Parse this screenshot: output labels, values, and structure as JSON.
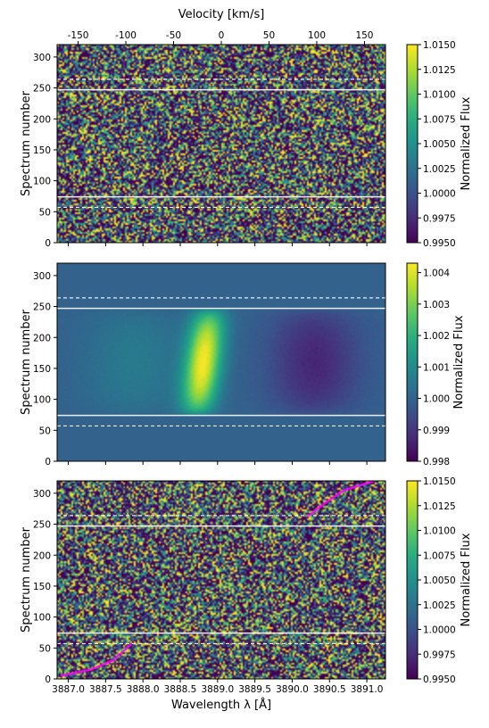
{
  "chart_data": [
    {
      "type": "heatmap",
      "xlabel_top": "Velocity [km/s]",
      "ylabel": "Spectrum number",
      "colorbar_label": "Normalized Flux",
      "colormap": "viridis",
      "velocity_range": [
        -172,
        172
      ],
      "velocity_ticks": [
        -150,
        -100,
        -50,
        0,
        50,
        100,
        150
      ],
      "wavelength_range": [
        3886.85,
        3891.25
      ],
      "y_range": [
        0,
        320
      ],
      "y_ticks": [
        0,
        50,
        100,
        150,
        200,
        250,
        300
      ],
      "colorbar_range": [
        0.995,
        1.015
      ],
      "colorbar_ticks": [
        "0.9950",
        "0.9975",
        "1.0000",
        "1.0025",
        "1.0050",
        "1.0075",
        "1.0100",
        "1.0125",
        "1.0150"
      ],
      "solid_lines_y": [
        74,
        247
      ],
      "dashed_lines_y": [
        57,
        264
      ],
      "content": "noisy residual flux"
    },
    {
      "type": "heatmap",
      "ylabel": "Spectrum number",
      "colorbar_label": "Normalized Flux",
      "colormap": "viridis",
      "wavelength_range": [
        3886.85,
        3891.25
      ],
      "y_range": [
        0,
        320
      ],
      "y_ticks": [
        0,
        50,
        100,
        150,
        200,
        250,
        300
      ],
      "colorbar_range": [
        0.998,
        1.0043
      ],
      "colorbar_ticks": [
        "0.998",
        "0.999",
        "1.000",
        "1.001",
        "1.002",
        "1.003",
        "1.004"
      ],
      "solid_lines_y": [
        74,
        247
      ],
      "dashed_lines_y": [
        57,
        264
      ],
      "model": {
        "background": 1.0,
        "emission_center_start": 3888.72,
        "emission_center_end": 3888.9,
        "emission_peak": 1.0042,
        "absorption_center": 3890.3,
        "absorption_depth": 0.0013
      }
    },
    {
      "type": "heatmap",
      "xlabel": "Wavelength λ [Å]",
      "ylabel": "Spectrum number",
      "colorbar_label": "Normalized Flux",
      "colormap": "viridis",
      "wavelength_range": [
        3886.85,
        3891.25
      ],
      "wavelength_ticks": [
        "3887.0",
        "3887.5",
        "3888.0",
        "3888.5",
        "3889.0",
        "3889.5",
        "3890.0",
        "3890.5",
        "3891.0"
      ],
      "y_range": [
        0,
        320
      ],
      "y_ticks": [
        0,
        50,
        100,
        150,
        200,
        250,
        300
      ],
      "colorbar_range": [
        0.995,
        1.015
      ],
      "colorbar_ticks": [
        "0.9950",
        "0.9975",
        "1.0000",
        "1.0025",
        "1.0050",
        "1.0075",
        "1.0100",
        "1.0125",
        "1.0150"
      ],
      "solid_lines_y": [
        74,
        247
      ],
      "dashed_lines_y": [
        57,
        264
      ],
      "magenta_track_bottom": {
        "x": [
          3886.9,
          3887.3,
          3887.6,
          3887.85
        ],
        "y": [
          5,
          15,
          30,
          57
        ]
      },
      "magenta_track_top": {
        "x": [
          3890.2,
          3890.45,
          3890.7,
          3891.1
        ],
        "y": [
          262,
          285,
          305,
          320
        ]
      }
    }
  ]
}
